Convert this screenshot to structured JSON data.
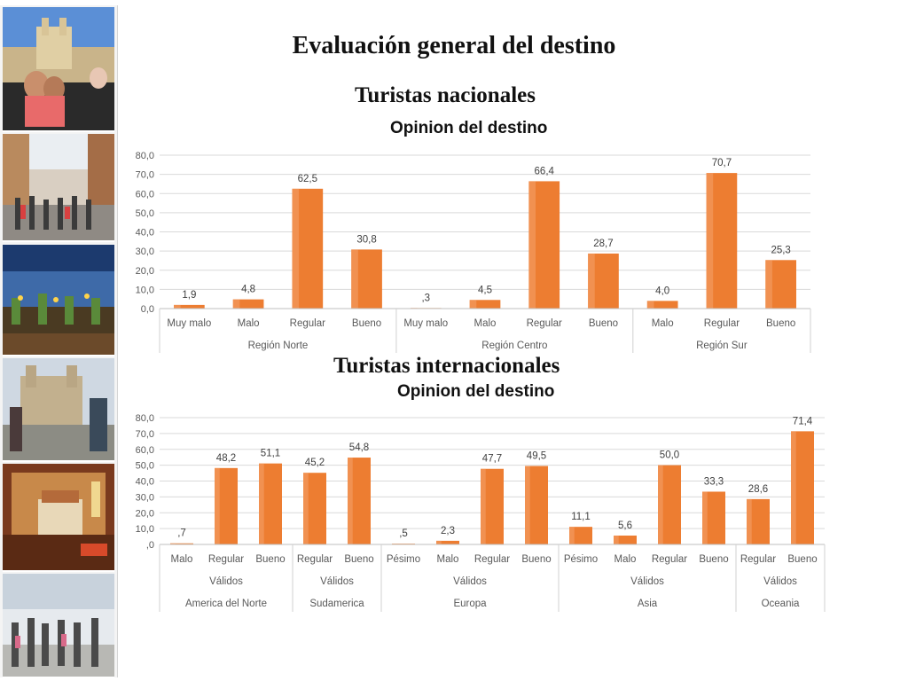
{
  "title": "Evaluación general del destino",
  "section_national": "Turistas nacionales",
  "section_international": "Turistas internacionales",
  "colors": {
    "bar": "#ed7d31",
    "bar_light": "#f4a36b",
    "grid": "#d9d9d9",
    "text": "#595959"
  },
  "sidebar": {
    "photos": [
      "city-plaza-photo",
      "street-crowd-photo",
      "garden-terrace-photo",
      "church-tourists-photo",
      "hotel-room-photo",
      "airport-travelers-photo"
    ]
  },
  "chart_data": [
    {
      "type": "bar",
      "title": "Opinion del destino",
      "ylim": [
        0,
        80
      ],
      "yticks": [
        "0,0",
        "10,0",
        "20,0",
        "30,0",
        "40,0",
        "50,0",
        "60,0",
        "70,0",
        "80,0"
      ],
      "grid": true,
      "groups": [
        {
          "name": "Región Norte",
          "categories": [
            "Muy malo",
            "Malo",
            "Regular",
            "Bueno"
          ],
          "values": [
            1.9,
            4.8,
            62.5,
            30.8
          ],
          "labels": [
            "1,9",
            "4,8",
            "62,5",
            "30,8"
          ]
        },
        {
          "name": "Región Centro",
          "categories": [
            "Muy malo",
            "Malo",
            "Regular",
            "Bueno"
          ],
          "values": [
            0.3,
            4.5,
            66.4,
            28.7
          ],
          "labels": [
            ",3",
            "4,5",
            "66,4",
            "28,7"
          ]
        },
        {
          "name": "Región Sur",
          "categories": [
            "Malo",
            "Regular",
            "Bueno"
          ],
          "values": [
            4.0,
            70.7,
            25.3
          ],
          "labels": [
            "4,0",
            "70,7",
            "25,3"
          ]
        }
      ]
    },
    {
      "type": "bar",
      "title": "Opinion del destino",
      "ylim": [
        0,
        80
      ],
      "yticks": [
        ",0",
        "10,0",
        "20,0",
        "30,0",
        "40,0",
        "50,0",
        "60,0",
        "70,0",
        "80,0"
      ],
      "grid": true,
      "groups": [
        {
          "name": "America del Norte",
          "subgroup": "Válidos",
          "categories": [
            "Malo",
            "Regular",
            "Bueno"
          ],
          "values": [
            0.7,
            48.2,
            51.1
          ],
          "labels": [
            ",7",
            "48,2",
            "51,1"
          ]
        },
        {
          "name": "Sudamerica",
          "subgroup": "Válidos",
          "categories": [
            "Regular",
            "Bueno"
          ],
          "values": [
            45.2,
            54.8
          ],
          "labels": [
            "45,2",
            "54,8"
          ]
        },
        {
          "name": "Europa",
          "subgroup": "Válidos",
          "categories": [
            "Pésimo",
            "Malo",
            "Regular",
            "Bueno"
          ],
          "values": [
            0.5,
            2.3,
            47.7,
            49.5
          ],
          "labels": [
            ",5",
            "2,3",
            "47,7",
            "49,5"
          ]
        },
        {
          "name": "Asia",
          "subgroup": "Válidos",
          "categories": [
            "Pésimo",
            "Malo",
            "Regular",
            "Bueno"
          ],
          "values": [
            11.1,
            5.6,
            50.0,
            33.3
          ],
          "labels": [
            "11,1",
            "5,6",
            "50,0",
            "33,3"
          ]
        },
        {
          "name": "Oceania",
          "subgroup": "Válidos",
          "categories": [
            "Regular",
            "Bueno"
          ],
          "values": [
            28.6,
            71.4
          ],
          "labels": [
            "28,6",
            "71,4"
          ]
        }
      ]
    }
  ]
}
